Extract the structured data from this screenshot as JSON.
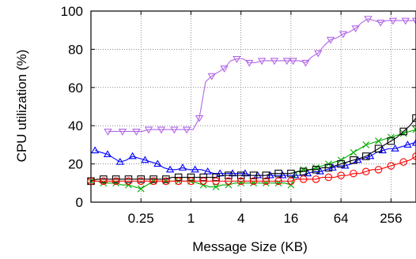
{
  "chart_data": {
    "type": "line",
    "xlabel": "Message Size (KB)",
    "ylabel": "CPU utilization (%)",
    "x_scale": "log2",
    "xlim": [
      0.0625,
      512
    ],
    "ylim": [
      0,
      100
    ],
    "x_ticks": [
      {
        "value": 0.25,
        "label": "0.25"
      },
      {
        "value": 1,
        "label": "1"
      },
      {
        "value": 4,
        "label": "4"
      },
      {
        "value": 16,
        "label": "16"
      },
      {
        "value": 64,
        "label": "64"
      },
      {
        "value": 256,
        "label": "256"
      }
    ],
    "y_ticks": [
      {
        "value": 0,
        "label": "0"
      },
      {
        "value": 20,
        "label": "20"
      },
      {
        "value": 40,
        "label": "40"
      },
      {
        "value": 60,
        "label": "60"
      },
      {
        "value": 80,
        "label": "80"
      },
      {
        "value": 100,
        "label": "100"
      }
    ],
    "grid": true,
    "series": [
      {
        "color": "#b266e6",
        "marker": "triangle-down",
        "points": [
          [
            0.1,
            37
          ],
          [
            0.125,
            37
          ],
          [
            0.15,
            37
          ],
          [
            0.18,
            37
          ],
          [
            0.22,
            37
          ],
          [
            0.26,
            37
          ],
          [
            0.31,
            38
          ],
          [
            0.37,
            38
          ],
          [
            0.44,
            38
          ],
          [
            0.53,
            38
          ],
          [
            0.63,
            38
          ],
          [
            0.75,
            38
          ],
          [
            0.89,
            38
          ],
          [
            1.06,
            38
          ],
          [
            1.26,
            44
          ],
          [
            1.5,
            63
          ],
          [
            1.78,
            66
          ],
          [
            2.12,
            68
          ],
          [
            2.52,
            70
          ],
          [
            3,
            74
          ],
          [
            3.56,
            75
          ],
          [
            4.24,
            75
          ],
          [
            5.04,
            73
          ],
          [
            6,
            73
          ],
          [
            7.13,
            74
          ],
          [
            8.48,
            74
          ],
          [
            10.1,
            74
          ],
          [
            12,
            74
          ],
          [
            14.3,
            74
          ],
          [
            16,
            74
          ],
          [
            17,
            74
          ],
          [
            20.2,
            74
          ],
          [
            24,
            73
          ],
          [
            28.5,
            76
          ],
          [
            34,
            78
          ],
          [
            40.3,
            82
          ],
          [
            48,
            85
          ],
          [
            57,
            86
          ],
          [
            68,
            88
          ],
          [
            80.6,
            89
          ],
          [
            96,
            91
          ],
          [
            114,
            94
          ],
          [
            136,
            96
          ],
          [
            161,
            95
          ],
          [
            192,
            94
          ],
          [
            228,
            95
          ],
          [
            271,
            95
          ],
          [
            322,
            95
          ],
          [
            383,
            95
          ],
          [
            456,
            95
          ],
          [
            512,
            95
          ]
        ]
      },
      {
        "color": "#0000ff",
        "marker": "triangle-up",
        "points": [
          [
            0.07,
            27
          ],
          [
            0.0833,
            26
          ],
          [
            0.0991,
            25
          ],
          [
            0.118,
            23
          ],
          [
            0.14,
            21
          ],
          [
            0.167,
            22
          ],
          [
            0.198,
            24
          ],
          [
            0.236,
            23
          ],
          [
            0.28,
            22
          ],
          [
            0.333,
            21
          ],
          [
            0.397,
            20
          ],
          [
            0.472,
            18
          ],
          [
            0.561,
            17
          ],
          [
            0.667,
            17
          ],
          [
            0.794,
            18
          ],
          [
            0.944,
            17
          ],
          [
            1.12,
            17
          ],
          [
            1.33,
            17
          ],
          [
            1.59,
            16
          ],
          [
            1.89,
            15
          ],
          [
            2.24,
            15
          ],
          [
            2.67,
            15
          ],
          [
            3.17,
            15
          ],
          [
            3.78,
            15
          ],
          [
            4.49,
            15
          ],
          [
            5.34,
            14
          ],
          [
            6.35,
            14
          ],
          [
            7.55,
            14
          ],
          [
            8.98,
            14
          ],
          [
            10.7,
            14
          ],
          [
            12.7,
            14
          ],
          [
            15.1,
            14
          ],
          [
            18,
            14
          ],
          [
            21.4,
            14
          ],
          [
            25.4,
            15
          ],
          [
            30.2,
            16
          ],
          [
            35.9,
            16
          ],
          [
            42.7,
            17
          ],
          [
            50.8,
            18
          ],
          [
            60.4,
            19
          ],
          [
            71.8,
            19
          ],
          [
            85.4,
            20
          ],
          [
            102,
            22
          ],
          [
            121,
            23
          ],
          [
            144,
            24
          ],
          [
            171,
            26
          ],
          [
            203,
            27
          ],
          [
            242,
            28
          ],
          [
            287,
            28
          ],
          [
            342,
            29
          ],
          [
            406,
            30
          ],
          [
            483,
            31
          ],
          [
            512,
            31
          ]
        ]
      },
      {
        "color": "#00aa00",
        "marker": "x",
        "points": [
          [
            0.0625,
            11
          ],
          [
            0.0744,
            11
          ],
          [
            0.0884,
            10
          ],
          [
            0.105,
            10
          ],
          [
            0.125,
            10
          ],
          [
            0.149,
            9
          ],
          [
            0.177,
            9
          ],
          [
            0.21,
            8
          ],
          [
            0.25,
            7
          ],
          [
            0.297,
            9
          ],
          [
            0.354,
            11
          ],
          [
            0.42,
            11
          ],
          [
            0.5,
            11
          ],
          [
            0.595,
            11
          ],
          [
            0.707,
            11
          ],
          [
            0.841,
            11
          ],
          [
            1,
            11
          ],
          [
            1.19,
            10
          ],
          [
            1.41,
            9
          ],
          [
            1.68,
            8
          ],
          [
            2,
            8
          ],
          [
            2.38,
            9
          ],
          [
            2.83,
            9
          ],
          [
            3.36,
            10
          ],
          [
            4,
            10
          ],
          [
            4.76,
            10
          ],
          [
            5.66,
            10
          ],
          [
            6.73,
            10
          ],
          [
            8,
            10
          ],
          [
            9.51,
            10
          ],
          [
            11.3,
            10
          ],
          [
            13.5,
            10
          ],
          [
            16,
            9
          ],
          [
            19,
            16
          ],
          [
            22.6,
            17
          ],
          [
            26.9,
            17
          ],
          [
            32,
            18
          ],
          [
            38.1,
            19
          ],
          [
            45.3,
            20
          ],
          [
            53.8,
            21
          ],
          [
            64,
            22
          ],
          [
            76.1,
            24
          ],
          [
            90.5,
            26
          ],
          [
            108,
            28
          ],
          [
            128,
            30
          ],
          [
            152,
            31
          ],
          [
            181,
            32
          ],
          [
            215,
            33
          ],
          [
            256,
            34
          ],
          [
            304,
            35
          ],
          [
            362,
            36
          ],
          [
            431,
            37
          ],
          [
            512,
            38
          ]
        ]
      },
      {
        "color": "#000000",
        "marker": "square",
        "points": [
          [
            0.0625,
            11
          ],
          [
            0.0743,
            12
          ],
          [
            0.0884,
            12
          ],
          [
            0.105,
            12
          ],
          [
            0.125,
            12
          ],
          [
            0.149,
            12
          ],
          [
            0.177,
            12
          ],
          [
            0.21,
            12
          ],
          [
            0.25,
            12
          ],
          [
            0.297,
            12
          ],
          [
            0.354,
            12
          ],
          [
            0.42,
            12
          ],
          [
            0.5,
            12
          ],
          [
            0.595,
            13
          ],
          [
            0.707,
            13
          ],
          [
            0.841,
            13
          ],
          [
            1,
            13
          ],
          [
            1.19,
            13
          ],
          [
            1.41,
            13
          ],
          [
            1.68,
            13
          ],
          [
            2,
            13
          ],
          [
            2.38,
            14
          ],
          [
            2.83,
            14
          ],
          [
            3.36,
            14
          ],
          [
            4,
            14
          ],
          [
            4.76,
            14
          ],
          [
            5.66,
            14
          ],
          [
            6.73,
            14
          ],
          [
            8,
            14
          ],
          [
            9.51,
            15
          ],
          [
            11.3,
            15
          ],
          [
            13.5,
            15
          ],
          [
            16,
            15
          ],
          [
            19,
            16
          ],
          [
            22.6,
            16
          ],
          [
            26.9,
            17
          ],
          [
            32,
            17
          ],
          [
            38.1,
            18
          ],
          [
            45.3,
            18
          ],
          [
            53.8,
            19
          ],
          [
            64,
            20
          ],
          [
            76.1,
            21
          ],
          [
            90.5,
            22
          ],
          [
            108,
            23
          ],
          [
            128,
            24
          ],
          [
            152,
            26
          ],
          [
            181,
            28
          ],
          [
            215,
            30
          ],
          [
            256,
            32
          ],
          [
            304,
            34
          ],
          [
            362,
            37
          ],
          [
            431,
            40
          ],
          [
            512,
            44
          ]
        ]
      },
      {
        "color": "#ff0000",
        "marker": "circle",
        "points": [
          [
            0.0625,
            11
          ],
          [
            0.0743,
            11
          ],
          [
            0.0884,
            11
          ],
          [
            0.105,
            11
          ],
          [
            0.125,
            11
          ],
          [
            0.149,
            11
          ],
          [
            0.177,
            11
          ],
          [
            0.21,
            11
          ],
          [
            0.25,
            11
          ],
          [
            0.297,
            11
          ],
          [
            0.354,
            11
          ],
          [
            0.42,
            11
          ],
          [
            0.5,
            11
          ],
          [
            0.595,
            11
          ],
          [
            0.707,
            11
          ],
          [
            0.841,
            11
          ],
          [
            1,
            11
          ],
          [
            1.19,
            11
          ],
          [
            1.41,
            11
          ],
          [
            1.68,
            11
          ],
          [
            2,
            11
          ],
          [
            2.38,
            11
          ],
          [
            2.83,
            11
          ],
          [
            3.36,
            11
          ],
          [
            4,
            11
          ],
          [
            4.76,
            11
          ],
          [
            5.66,
            11
          ],
          [
            6.73,
            11
          ],
          [
            8,
            11
          ],
          [
            9.51,
            11
          ],
          [
            11.3,
            11
          ],
          [
            13.5,
            11
          ],
          [
            16,
            11
          ],
          [
            19,
            12
          ],
          [
            22.6,
            12
          ],
          [
            26.9,
            12
          ],
          [
            32,
            12
          ],
          [
            38.1,
            13
          ],
          [
            45.3,
            13
          ],
          [
            53.8,
            13
          ],
          [
            64,
            14
          ],
          [
            76.1,
            14
          ],
          [
            90.5,
            15
          ],
          [
            108,
            15
          ],
          [
            128,
            16
          ],
          [
            152,
            17
          ],
          [
            181,
            17
          ],
          [
            215,
            18
          ],
          [
            256,
            19
          ],
          [
            304,
            20
          ],
          [
            362,
            21
          ],
          [
            431,
            22
          ],
          [
            512,
            24
          ]
        ]
      }
    ]
  }
}
